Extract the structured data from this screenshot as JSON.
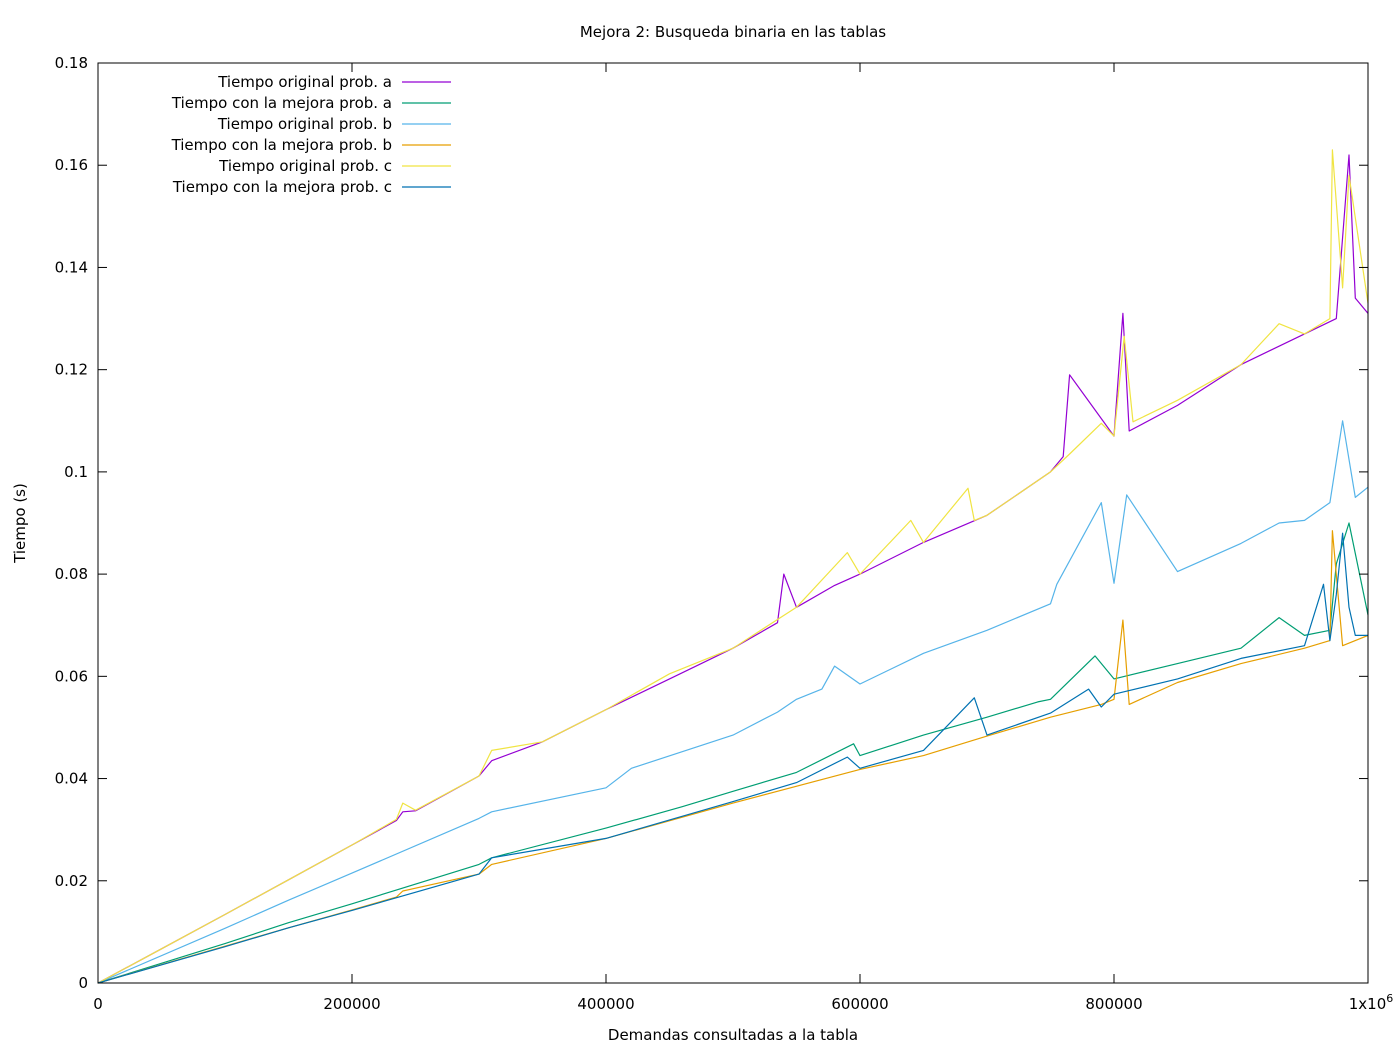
{
  "chart_data": {
    "type": "line",
    "title": "Mejora 2: Busqueda binaria en las tablas",
    "xlabel": "Demandas consultadas a la tabla",
    "ylabel": "Tiempo (s)",
    "xlim": [
      0,
      1000000
    ],
    "ylim": [
      0,
      0.18
    ],
    "x_ticks": [
      {
        "value": 0,
        "label": "0"
      },
      {
        "value": 200000,
        "label": "200000"
      },
      {
        "value": 400000,
        "label": "400000"
      },
      {
        "value": 600000,
        "label": "600000"
      },
      {
        "value": 800000,
        "label": "800000"
      },
      {
        "value": 1000000,
        "label": "1x10",
        "sup": "6"
      }
    ],
    "y_ticks": [
      {
        "value": 0,
        "label": "0"
      },
      {
        "value": 0.02,
        "label": "0.02"
      },
      {
        "value": 0.04,
        "label": "0.04"
      },
      {
        "value": 0.06,
        "label": "0.06"
      },
      {
        "value": 0.08,
        "label": "0.08"
      },
      {
        "value": 0.1,
        "label": "0.1"
      },
      {
        "value": 0.12,
        "label": "0.12"
      },
      {
        "value": 0.14,
        "label": "0.14"
      },
      {
        "value": 0.16,
        "label": "0.16"
      },
      {
        "value": 0.18,
        "label": "0.18"
      }
    ],
    "grid": false,
    "legend_position": "top-left",
    "series": [
      {
        "name": "Tiempo original prob. a",
        "color": "#9400d3",
        "x": [
          0,
          50000,
          100000,
          150000,
          200000,
          235000,
          240000,
          250000,
          300000,
          310000,
          350000,
          400000,
          450000,
          500000,
          535000,
          540000,
          550000,
          580000,
          600000,
          650000,
          700000,
          750000,
          760000,
          765000,
          800000,
          807000,
          812000,
          850000,
          900000,
          950000,
          975000,
          985000,
          990000,
          1000000
        ],
        "y": [
          0,
          0.0067,
          0.0134,
          0.0202,
          0.027,
          0.0318,
          0.0335,
          0.0337,
          0.0405,
          0.0435,
          0.0472,
          0.0535,
          0.0595,
          0.0655,
          0.0705,
          0.08,
          0.0735,
          0.0778,
          0.08,
          0.0862,
          0.0915,
          0.1,
          0.103,
          0.119,
          0.107,
          0.131,
          0.108,
          0.113,
          0.121,
          0.127,
          0.13,
          0.162,
          0.134,
          0.131
        ]
      },
      {
        "name": "Tiempo con la mejora prob. a",
        "color": "#009e73",
        "x": [
          0,
          100000,
          150000,
          200000,
          300000,
          310000,
          400000,
          460000,
          500000,
          550000,
          595000,
          600000,
          650000,
          700000,
          740000,
          750000,
          785000,
          800000,
          850000,
          900000,
          930000,
          950000,
          970000,
          975000,
          985000,
          1000000
        ],
        "y": [
          0,
          0.0077,
          0.0118,
          0.0155,
          0.0232,
          0.0245,
          0.0303,
          0.0345,
          0.0375,
          0.0412,
          0.0468,
          0.0445,
          0.0485,
          0.052,
          0.055,
          0.0555,
          0.064,
          0.0595,
          0.0625,
          0.0655,
          0.0715,
          0.068,
          0.069,
          0.082,
          0.09,
          0.072
        ]
      },
      {
        "name": "Tiempo original prob. b",
        "color": "#56b4e9",
        "x": [
          0,
          100000,
          150000,
          200000,
          300000,
          310000,
          400000,
          420000,
          500000,
          535000,
          550000,
          570000,
          580000,
          600000,
          650000,
          700000,
          750000,
          755000,
          790000,
          800000,
          810000,
          850000,
          900000,
          930000,
          950000,
          970000,
          980000,
          990000,
          1000000
        ],
        "y": [
          0,
          0.0107,
          0.0162,
          0.0215,
          0.0322,
          0.0335,
          0.0382,
          0.042,
          0.0485,
          0.053,
          0.0555,
          0.0575,
          0.062,
          0.0585,
          0.0645,
          0.069,
          0.0742,
          0.078,
          0.094,
          0.0782,
          0.0955,
          0.0805,
          0.086,
          0.09,
          0.0905,
          0.094,
          0.11,
          0.095,
          0.097
        ]
      },
      {
        "name": "Tiempo con la mejora prob. b",
        "color": "#e69f00",
        "x": [
          0,
          100000,
          150000,
          200000,
          235000,
          240000,
          300000,
          310000,
          400000,
          500000,
          600000,
          650000,
          700000,
          750000,
          790000,
          800000,
          807000,
          812000,
          850000,
          900000,
          950000,
          970000,
          972000,
          980000,
          1000000
        ],
        "y": [
          0,
          0.0072,
          0.0108,
          0.0143,
          0.0168,
          0.018,
          0.0213,
          0.0232,
          0.0283,
          0.0352,
          0.0418,
          0.0445,
          0.0483,
          0.052,
          0.0545,
          0.0555,
          0.071,
          0.0545,
          0.0588,
          0.0625,
          0.0655,
          0.067,
          0.0885,
          0.066,
          0.068
        ]
      },
      {
        "name": "Tiempo original prob. c",
        "color": "#f0e442",
        "x": [
          0,
          50000,
          100000,
          150000,
          200000,
          235000,
          240000,
          250000,
          300000,
          310000,
          350000,
          400000,
          450000,
          500000,
          550000,
          590000,
          600000,
          640000,
          650000,
          685000,
          690000,
          700000,
          750000,
          765000,
          790000,
          800000,
          808000,
          815000,
          850000,
          900000,
          930000,
          950000,
          970000,
          972000,
          980000,
          985000,
          1000000
        ],
        "y": [
          0,
          0.0067,
          0.0134,
          0.0202,
          0.027,
          0.032,
          0.0352,
          0.0338,
          0.0405,
          0.0455,
          0.0472,
          0.0535,
          0.0605,
          0.0655,
          0.0735,
          0.0842,
          0.08,
          0.0905,
          0.0862,
          0.0968,
          0.0905,
          0.0915,
          0.1,
          0.1035,
          0.1095,
          0.107,
          0.1265,
          0.1098,
          0.114,
          0.121,
          0.129,
          0.127,
          0.13,
          0.163,
          0.136,
          0.158,
          0.133
        ]
      },
      {
        "name": "Tiempo con la mejora prob. c",
        "color": "#0072b2",
        "x": [
          0,
          100000,
          150000,
          200000,
          300000,
          310000,
          400000,
          500000,
          550000,
          590000,
          600000,
          650000,
          690000,
          700000,
          750000,
          780000,
          790000,
          800000,
          850000,
          900000,
          950000,
          965000,
          970000,
          975000,
          980000,
          985000,
          990000,
          1000000
        ],
        "y": [
          0,
          0.0071,
          0.0108,
          0.0142,
          0.0213,
          0.0245,
          0.0283,
          0.0355,
          0.0392,
          0.0442,
          0.042,
          0.0455,
          0.0558,
          0.0485,
          0.0528,
          0.0575,
          0.054,
          0.0565,
          0.0595,
          0.0635,
          0.066,
          0.078,
          0.067,
          0.076,
          0.088,
          0.0735,
          0.068,
          0.068
        ]
      }
    ]
  }
}
